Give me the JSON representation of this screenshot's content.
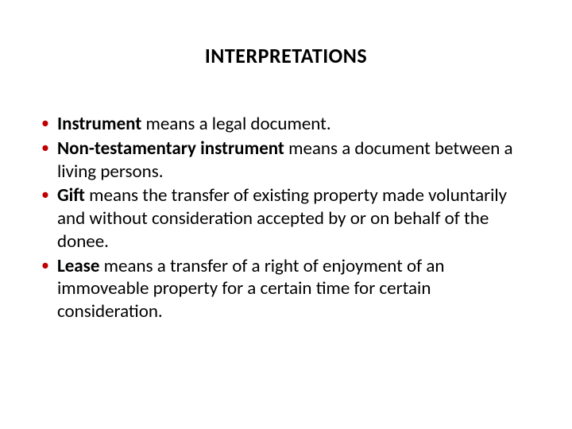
{
  "title": "INTERPRETATIONS",
  "bullet_color": "#c00000",
  "text_color": "#000000",
  "background_color": "#ffffff",
  "title_fontsize": 26,
  "body_fontsize": 23,
  "items": [
    {
      "term": "Instrument",
      "rest": " means a legal document."
    },
    {
      "term": "Non-testamentary instrument",
      "rest": " means a document between a living persons."
    },
    {
      "term": "Gift",
      "rest": " means the transfer of existing property made voluntarily and without consideration accepted by or on behalf of the donee."
    },
    {
      "term": "Lease",
      "rest": " means a transfer of a right of enjoyment of an immoveable property for a certain time for certain consideration."
    }
  ]
}
